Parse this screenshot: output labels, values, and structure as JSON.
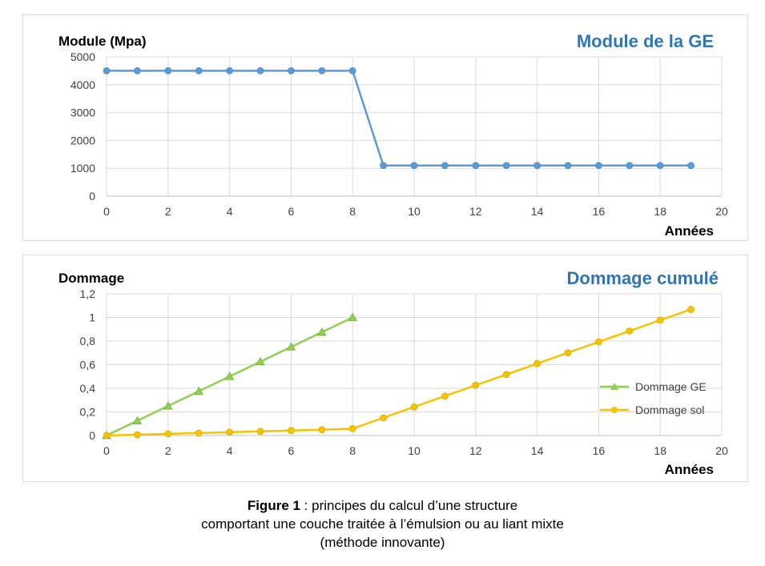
{
  "chart_data": [
    {
      "type": "line",
      "title": "Module de la GE",
      "ylabel": "Module (Mpa)",
      "xlabel": "Années",
      "xlim": [
        0,
        20
      ],
      "ylim": [
        0,
        5000
      ],
      "xticks": [
        "0",
        "2",
        "4",
        "6",
        "8",
        "10",
        "12",
        "14",
        "16",
        "18",
        "20"
      ],
      "yticks": [
        "0",
        "1000",
        "2000",
        "3000",
        "4000",
        "5000"
      ],
      "grid": true,
      "colors": {
        "series": "#5b9bd5",
        "title": "#2e75b6"
      },
      "series": [
        {
          "name": "",
          "x": [
            0,
            1,
            2,
            3,
            4,
            5,
            6,
            7,
            8,
            9,
            10,
            11,
            12,
            13,
            14,
            15,
            16,
            17,
            18,
            19
          ],
          "y": [
            4500,
            4500,
            4500,
            4500,
            4500,
            4500,
            4500,
            4500,
            4500,
            1100,
            1100,
            1100,
            1100,
            1100,
            1100,
            1100,
            1100,
            1100,
            1100,
            1100
          ],
          "marker": "circle"
        }
      ]
    },
    {
      "type": "line",
      "title": "Dommage cumulé",
      "ylabel": "Dommage",
      "xlabel": "Années",
      "xlim": [
        0,
        20
      ],
      "ylim": [
        0,
        1.2
      ],
      "xticks": [
        "0",
        "2",
        "4",
        "6",
        "8",
        "10",
        "12",
        "14",
        "16",
        "18",
        "20"
      ],
      "yticks": [
        "0",
        "0,2",
        "0,4",
        "0,6",
        "0,8",
        "1",
        "1,2"
      ],
      "grid": true,
      "legend": "right",
      "colors": {
        "title": "#2e75b6"
      },
      "series": [
        {
          "name": "Dommage GE",
          "color": "#92d050",
          "marker": "triangle",
          "x": [
            0,
            1,
            2,
            3,
            4,
            5,
            6,
            7,
            8
          ],
          "y": [
            0,
            0.125,
            0.25,
            0.375,
            0.5,
            0.625,
            0.75,
            0.875,
            1.0
          ]
        },
        {
          "name": "Dommage sol",
          "color": "#f5c400",
          "marker": "circle",
          "x": [
            0,
            1,
            2,
            3,
            4,
            5,
            6,
            7,
            8,
            9,
            10,
            11,
            12,
            13,
            14,
            15,
            16,
            17,
            18,
            19
          ],
          "y": [
            0,
            0.007,
            0.014,
            0.021,
            0.028,
            0.035,
            0.042,
            0.049,
            0.058,
            0.15,
            0.242,
            0.334,
            0.426,
            0.517,
            0.609,
            0.701,
            0.793,
            0.885,
            0.977,
            1.068
          ]
        }
      ]
    }
  ],
  "caption": {
    "bold": "Figure 1",
    "line1": " : principes du calcul d’une structure",
    "line2": "comportant une couche traitée à l’émulsion ou au liant mixte",
    "line3": "(méthode innovante)"
  }
}
